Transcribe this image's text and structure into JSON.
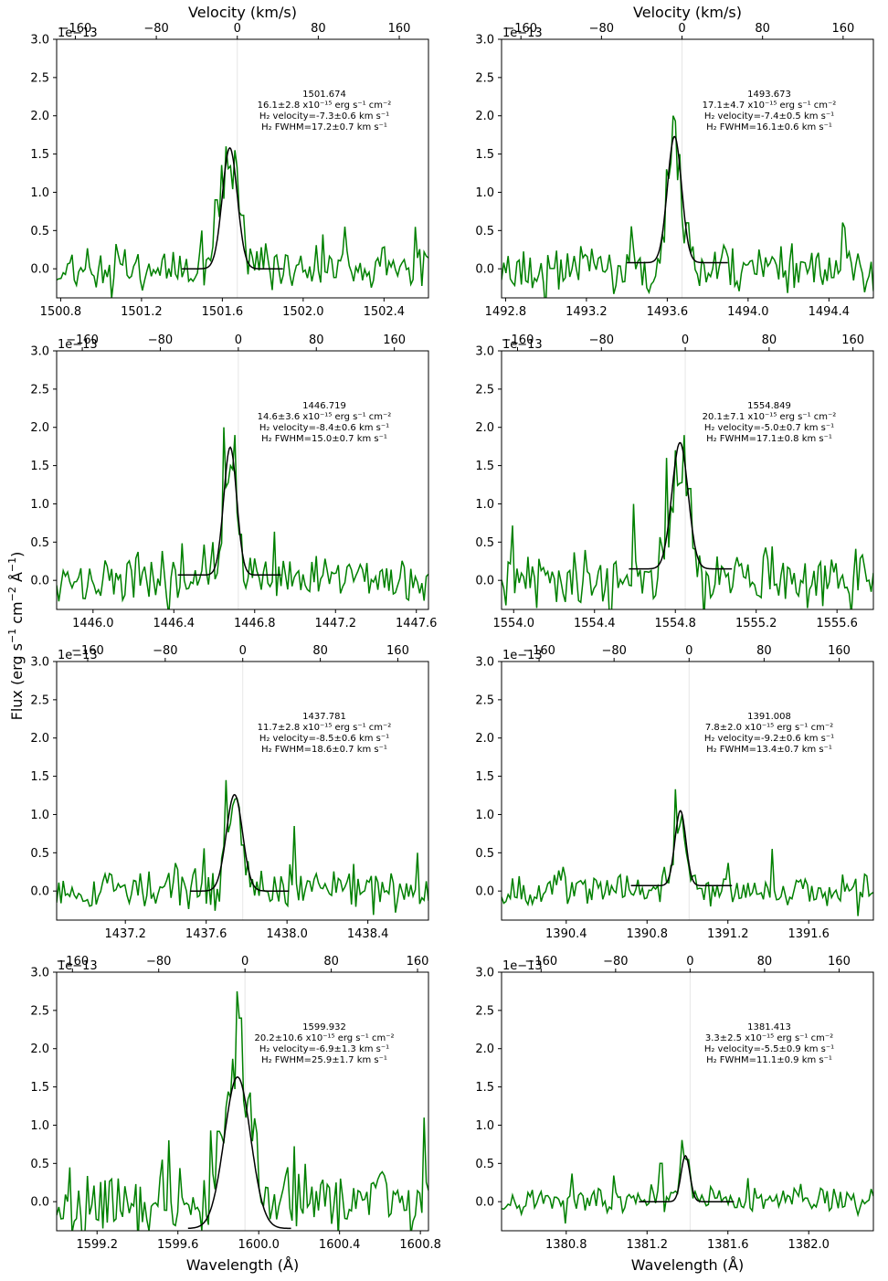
{
  "figure": {
    "ylabel": "Flux (erg s$^{-1}$ cm$^{-2}$ Å$^{-1}$)",
    "ylabel_parts": [
      "Flux (erg s",
      "−1",
      " cm",
      "−2",
      " Å",
      "−1",
      ")"
    ],
    "xlabel": "Wavelength (Å)",
    "top_xlabel": "Velocity (km/s)",
    "offset_label": "1e−13"
  },
  "chart_data": [
    {
      "type": "line",
      "panel": "row1-left",
      "title_lines": [
        "1501.674",
        "16.1±2.8 x10⁻¹⁵ erg s⁻¹ cm⁻²",
        "H₂ velocity=-7.3±0.6 km s⁻¹",
        "H₂ FWHM=17.2±0.7 km s⁻¹"
      ],
      "center": 1501.674,
      "xlim": [
        1500.78,
        1502.62
      ],
      "xticks": [
        1500.8,
        1501.2,
        1501.6,
        1502.0,
        1502.4
      ],
      "vticks": [
        -160,
        -80,
        0,
        80,
        160
      ],
      "ylim": [
        -0.38,
        3.0
      ],
      "yticks": [
        0.0,
        0.5,
        1.0,
        1.5,
        2.0,
        2.5,
        3.0
      ],
      "fit": {
        "amp": 1.58,
        "cen": 1501.637,
        "sigma": 0.037,
        "base": 0.0,
        "range": [
          1501.4,
          1501.9
        ]
      },
      "series": [
        {
          "name": "data",
          "color": "#008000",
          "seed": 11,
          "noise": 0.23,
          "spikes": [
            [
              1501.5,
              0.5
            ],
            [
              1501.57,
              0.9
            ],
            [
              1501.62,
              1.6
            ],
            [
              1501.66,
              1.55
            ],
            [
              1501.7,
              0.7
            ]
          ]
        }
      ]
    },
    {
      "type": "line",
      "panel": "row1-right",
      "title_lines": [
        "1493.673",
        "17.1±4.7 x10⁻¹⁵ erg s⁻¹ cm⁻²",
        "H₂ velocity=-7.4±0.5 km s⁻¹",
        "H₂ FWHM=16.1±0.6 km s⁻¹"
      ],
      "center": 1493.673,
      "xlim": [
        1492.78,
        1494.62
      ],
      "xticks": [
        1492.8,
        1493.2,
        1493.6,
        1494.0,
        1494.4
      ],
      "vticks": [
        -160,
        -80,
        0,
        80,
        160
      ],
      "ylim": [
        -0.38,
        3.0
      ],
      "yticks": [
        0.0,
        0.5,
        1.0,
        1.5,
        2.0,
        2.5,
        3.0
      ],
      "fit": {
        "amp": 1.65,
        "cen": 1493.636,
        "sigma": 0.035,
        "base": 0.08,
        "range": [
          1493.4,
          1493.9
        ]
      },
      "series": [
        {
          "name": "data",
          "color": "#008000",
          "seed": 23,
          "noise": 0.26,
          "spikes": [
            [
              1493.6,
              1.3
            ],
            [
              1493.63,
              2.0
            ],
            [
              1493.66,
              1.5
            ],
            [
              1493.7,
              0.6
            ]
          ]
        }
      ]
    },
    {
      "type": "line",
      "panel": "row2-left",
      "title_lines": [
        "1446.719",
        "14.6±3.6 x10⁻¹⁵ erg s⁻¹ cm⁻²",
        "H₂ velocity=-8.4±0.6 km s⁻¹",
        "H₂ FWHM=15.0±0.7 km s⁻¹"
      ],
      "center": 1446.719,
      "xlim": [
        1445.82,
        1447.66
      ],
      "xticks": [
        1446.0,
        1446.4,
        1446.8,
        1447.2,
        1447.6
      ],
      "vticks": [
        -160,
        -80,
        0,
        80,
        160
      ],
      "ylim": [
        -0.38,
        3.0
      ],
      "yticks": [
        0.0,
        0.5,
        1.0,
        1.5,
        2.0,
        2.5,
        3.0
      ],
      "fit": {
        "amp": 1.67,
        "cen": 1446.679,
        "sigma": 0.032,
        "base": 0.07,
        "range": [
          1446.42,
          1446.93
        ]
      },
      "series": [
        {
          "name": "data",
          "color": "#008000",
          "seed": 37,
          "noise": 0.22,
          "spikes": [
            [
              1446.59,
              0.5
            ],
            [
              1446.65,
              2.0
            ],
            [
              1446.68,
              1.5
            ],
            [
              1446.7,
              1.9
            ],
            [
              1446.73,
              0.6
            ]
          ]
        }
      ]
    },
    {
      "type": "line",
      "panel": "row2-right",
      "title_lines": [
        "1554.849",
        "20.1±7.1 x10⁻¹⁵ erg s⁻¹ cm⁻²",
        "H₂ velocity=-5.0±0.7 km s⁻¹",
        "H₂ FWHM=17.1±0.8 km s⁻¹"
      ],
      "center": 1554.849,
      "xlim": [
        1553.94,
        1555.78
      ],
      "xticks": [
        1554.0,
        1554.4,
        1554.8,
        1555.2,
        1555.6
      ],
      "vticks": [
        -160,
        -80,
        0,
        80,
        160
      ],
      "ylim": [
        -0.38,
        3.0
      ],
      "yticks": [
        0.0,
        0.5,
        1.0,
        1.5,
        2.0,
        2.5,
        3.0
      ],
      "fit": {
        "amp": 1.65,
        "cen": 1554.823,
        "sigma": 0.04,
        "base": 0.15,
        "range": [
          1554.57,
          1555.08
        ]
      },
      "series": [
        {
          "name": "data",
          "color": "#008000",
          "seed": 41,
          "noise": 0.28,
          "spikes": [
            [
              1554.59,
              1.0
            ],
            [
              1554.76,
              1.6
            ],
            [
              1554.8,
              1.7
            ],
            [
              1554.84,
              1.9
            ],
            [
              1554.87,
              1.2
            ]
          ]
        }
      ]
    },
    {
      "type": "line",
      "panel": "row3-left",
      "title_lines": [
        "1437.781",
        "11.7±2.8 x10⁻¹⁵ erg s⁻¹ cm⁻²",
        "H₂ velocity=-8.5±0.6 km s⁻¹",
        "H₂ FWHM=18.6±0.7 km s⁻¹"
      ],
      "center": 1437.781,
      "xlim": [
        1436.86,
        1438.7
      ],
      "xticks": [
        1437.2,
        1437.6,
        1438.0,
        1438.4
      ],
      "vticks": [
        -160,
        -80,
        0,
        80,
        160
      ],
      "ylim": [
        -0.38,
        3.0
      ],
      "yticks": [
        0.0,
        0.5,
        1.0,
        1.5,
        2.0,
        2.5,
        3.0
      ],
      "fit": {
        "amp": 1.26,
        "cen": 1437.74,
        "sigma": 0.04,
        "base": 0.0,
        "range": [
          1437.52,
          1438.01
        ]
      },
      "series": [
        {
          "name": "data",
          "color": "#008000",
          "seed": 53,
          "noise": 0.2,
          "spikes": [
            [
              1437.7,
              1.45
            ],
            [
              1437.74,
              1.2
            ],
            [
              1437.78,
              0.6
            ],
            [
              1438.04,
              0.85
            ]
          ]
        }
      ]
    },
    {
      "type": "line",
      "panel": "row3-right",
      "title_lines": [
        "1391.008",
        "7.8±2.0 x10⁻¹⁵ erg s⁻¹ cm⁻²",
        "H₂ velocity=-9.2±0.6 km s⁻¹",
        "H₂ FWHM=13.4±0.7 km s⁻¹"
      ],
      "center": 1391.008,
      "xlim": [
        1390.08,
        1391.92
      ],
      "xticks": [
        1390.4,
        1390.8,
        1391.2,
        1391.6
      ],
      "vticks": [
        -160,
        -80,
        0,
        80,
        160
      ],
      "ylim": [
        -0.38,
        3.0
      ],
      "yticks": [
        0.0,
        0.5,
        1.0,
        1.5,
        2.0,
        2.5,
        3.0
      ],
      "fit": {
        "amp": 0.98,
        "cen": 1390.965,
        "sigma": 0.027,
        "base": 0.07,
        "range": [
          1390.72,
          1391.22
        ]
      },
      "series": [
        {
          "name": "data",
          "color": "#008000",
          "seed": 67,
          "noise": 0.16,
          "spikes": [
            [
              1390.94,
              1.33
            ],
            [
              1390.97,
              1.0
            ],
            [
              1391.42,
              0.55
            ]
          ]
        }
      ]
    },
    {
      "type": "line",
      "panel": "row4-left",
      "title_lines": [
        "1599.932",
        "20.2±10.6 x10⁻¹⁵ erg s⁻¹ cm⁻²",
        "H₂ velocity=-6.9±1.3 km s⁻¹",
        "H₂ FWHM=25.9±1.7 km s⁻¹"
      ],
      "center": 1599.932,
      "xlim": [
        1599.0,
        1600.84
      ],
      "xticks": [
        1599.2,
        1599.6,
        1600.0,
        1600.4,
        1600.8
      ],
      "vticks": [
        -160,
        -80,
        0,
        80,
        160
      ],
      "ylim": [
        -0.38,
        3.0
      ],
      "yticks": [
        0.0,
        0.5,
        1.0,
        1.5,
        2.0,
        2.5,
        3.0
      ],
      "fit": {
        "amp": 1.98,
        "cen": 1599.895,
        "sigma": 0.065,
        "base": -0.35,
        "range": [
          1599.65,
          1600.16
        ]
      },
      "series": [
        {
          "name": "data",
          "color": "#008000",
          "seed": 79,
          "noise": 0.38,
          "spikes": [
            [
              1599.76,
              0.93
            ],
            [
              1599.8,
              0.92
            ],
            [
              1599.89,
              2.75
            ],
            [
              1599.91,
              2.4
            ],
            [
              1599.94,
              1.1
            ],
            [
              1600.82,
              1.1
            ]
          ]
        }
      ]
    },
    {
      "type": "line",
      "panel": "row4-right",
      "title_lines": [
        "1381.413",
        "3.3±2.5 x10⁻¹⁵ erg s⁻¹ cm⁻²",
        "H₂ velocity=-5.5±0.9 km s⁻¹",
        "H₂ FWHM=11.1±0.9 km s⁻¹"
      ],
      "center": 1381.413,
      "xlim": [
        1380.48,
        1382.32
      ],
      "xticks": [
        1380.8,
        1381.2,
        1381.6,
        1382.0
      ],
      "vticks": [
        -160,
        -80,
        0,
        80,
        160
      ],
      "ylim": [
        -0.38,
        3.0
      ],
      "yticks": [
        0.0,
        0.5,
        1.0,
        1.5,
        2.0,
        2.5,
        3.0
      ],
      "fit": {
        "amp": 0.6,
        "cen": 1381.39,
        "sigma": 0.022,
        "base": 0.0,
        "range": [
          1381.16,
          1381.63
        ]
      },
      "series": [
        {
          "name": "data",
          "color": "#008000",
          "seed": 97,
          "noise": 0.13,
          "spikes": [
            [
              1381.27,
              0.5
            ],
            [
              1381.38,
              0.58
            ],
            [
              1381.4,
              0.55
            ]
          ]
        }
      ]
    }
  ]
}
